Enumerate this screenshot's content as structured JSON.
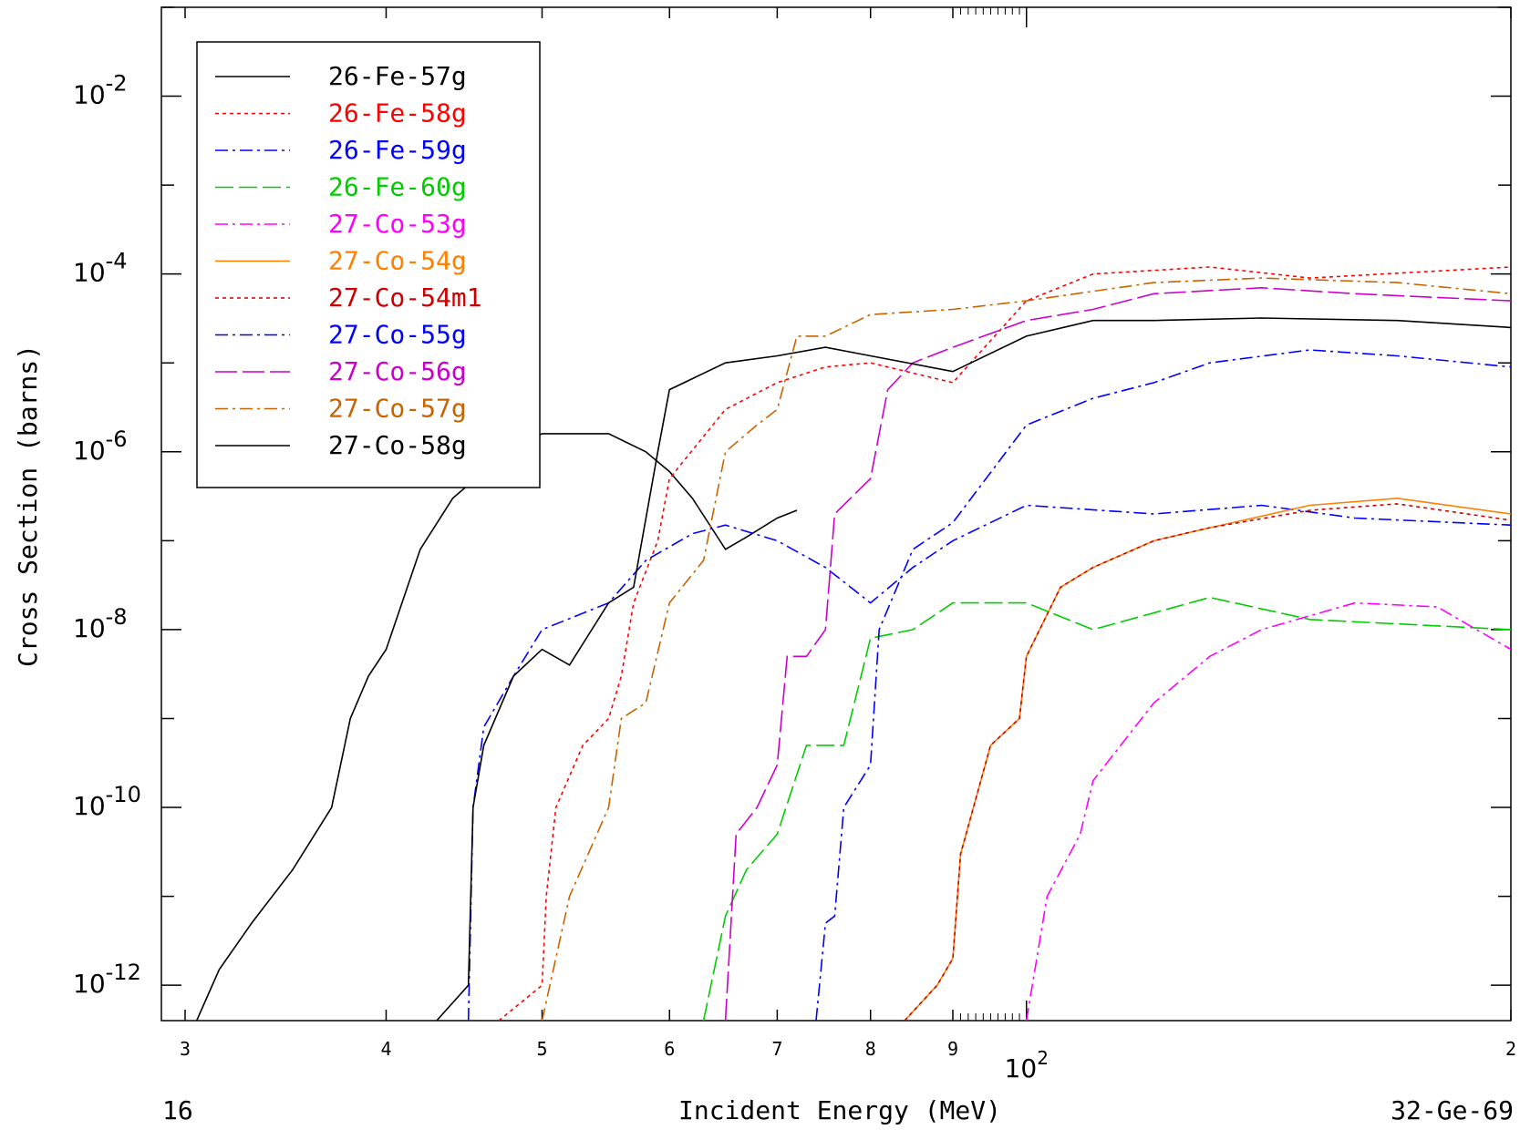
{
  "chart_data": {
    "type": "line",
    "xlabel": "Incident Energy (MeV)",
    "ylabel": "Cross Section (barns)",
    "x_scale": "log",
    "y_scale": "log",
    "xlim": [
      29,
      200
    ],
    "ylim": [
      4e-13,
      0.1
    ],
    "x_ticks": [
      {
        "value": 30,
        "label": "3"
      },
      {
        "value": 40,
        "label": "4"
      },
      {
        "value": 50,
        "label": "5"
      },
      {
        "value": 60,
        "label": "6"
      },
      {
        "value": 70,
        "label": "7"
      },
      {
        "value": 80,
        "label": "8"
      },
      {
        "value": 90,
        "label": "9"
      },
      {
        "value": 200,
        "label": "2"
      }
    ],
    "x_decade_label": {
      "base": "10",
      "exp": "2"
    },
    "y_tick_labels": [
      {
        "value": 0.01,
        "base": "10",
        "exp": "-2"
      },
      {
        "value": 0.0001,
        "base": "10",
        "exp": "-4"
      },
      {
        "value": 1e-06,
        "base": "10",
        "exp": "-6"
      },
      {
        "value": 1e-08,
        "base": "10",
        "exp": "-8"
      },
      {
        "value": 1e-10,
        "base": "10",
        "exp": "-10"
      },
      {
        "value": 1e-12,
        "base": "10",
        "exp": "-12"
      }
    ],
    "legend_position": "top-left",
    "footer_left": "16",
    "footer_right": "32-Ge-69",
    "series": [
      {
        "name": "26-Fe-57g",
        "color": "#000000",
        "dash": "solid",
        "points": [
          [
            30.5,
            4e-13
          ],
          [
            31.5,
            1.5e-12
          ],
          [
            33,
            5e-12
          ],
          [
            35,
            2e-11
          ],
          [
            37,
            1e-10
          ],
          [
            38,
            1e-09
          ],
          [
            39,
            3e-09
          ],
          [
            40,
            6e-09
          ],
          [
            42,
            8e-08
          ],
          [
            44,
            3e-07
          ],
          [
            46,
            6e-07
          ],
          [
            48,
            1.1e-06
          ],
          [
            50,
            1.6e-06
          ],
          [
            55,
            1.6e-06
          ],
          [
            58,
            1e-06
          ],
          [
            60,
            6e-07
          ],
          [
            62,
            3e-07
          ],
          [
            65,
            8e-08
          ],
          [
            67,
            1.1e-07
          ],
          [
            70,
            1.8e-07
          ],
          [
            72,
            2.2e-07
          ]
        ]
      },
      {
        "name": "26-Fe-58g",
        "color": "#ff0000",
        "dash": "4,4",
        "points": [
          [
            47,
            4e-13
          ],
          [
            50,
            1e-12
          ],
          [
            50.3,
            1e-11
          ],
          [
            51,
            1e-10
          ],
          [
            53,
            5e-10
          ],
          [
            55,
            1e-09
          ],
          [
            56,
            3e-09
          ],
          [
            57,
            2e-08
          ],
          [
            59,
            1e-07
          ],
          [
            60,
            5e-07
          ],
          [
            65,
            3e-06
          ],
          [
            70,
            6e-06
          ],
          [
            75,
            9e-06
          ],
          [
            80,
            1e-05
          ],
          [
            90,
            6e-06
          ],
          [
            100,
            5e-05
          ],
          [
            110,
            0.0001
          ],
          [
            130,
            0.00012
          ],
          [
            150,
            9e-05
          ],
          [
            200,
            0.00012
          ]
        ]
      },
      {
        "name": "26-Fe-59g",
        "color": "#0000ff",
        "dash": "14,5,3,5",
        "points": [
          [
            45,
            4e-13
          ],
          [
            45.3,
            1e-10
          ],
          [
            46,
            8e-10
          ],
          [
            48,
            3e-09
          ],
          [
            50,
            1e-08
          ],
          [
            55,
            2e-08
          ],
          [
            58,
            6e-08
          ],
          [
            62,
            1.2e-07
          ],
          [
            65,
            1.5e-07
          ],
          [
            70,
            1e-07
          ],
          [
            75,
            5e-08
          ],
          [
            80,
            2e-08
          ],
          [
            85,
            5e-08
          ],
          [
            90,
            1e-07
          ],
          [
            100,
            2.5e-07
          ],
          [
            120,
            2e-07
          ],
          [
            140,
            2.5e-07
          ],
          [
            160,
            1.8e-07
          ],
          [
            200,
            1.5e-07
          ]
        ]
      },
      {
        "name": "26-Fe-60g",
        "color": "#00cc00",
        "dash": "20,6",
        "points": [
          [
            63,
            4e-13
          ],
          [
            65,
            6e-12
          ],
          [
            67,
            2e-11
          ],
          [
            70,
            5e-11
          ],
          [
            73,
            5e-10
          ],
          [
            77,
            5e-10
          ],
          [
            80,
            8e-09
          ],
          [
            85,
            1e-08
          ],
          [
            90,
            2e-08
          ],
          [
            100,
            2e-08
          ],
          [
            110,
            1e-08
          ],
          [
            130,
            2.3e-08
          ],
          [
            150,
            1.3e-08
          ],
          [
            200,
            1e-08
          ]
        ]
      },
      {
        "name": "27-Co-53g",
        "color": "#ff00ff",
        "dash": "14,5,3,5",
        "points": [
          [
            100,
            4e-13
          ],
          [
            103,
            1e-11
          ],
          [
            108,
            5e-11
          ],
          [
            110,
            2e-10
          ],
          [
            120,
            1.5e-09
          ],
          [
            130,
            5e-09
          ],
          [
            140,
            1e-08
          ],
          [
            160,
            2e-08
          ],
          [
            180,
            1.8e-08
          ],
          [
            200,
            6e-09
          ]
        ]
      },
      {
        "name": "27-Co-54g",
        "color": "#ff8000",
        "dash": "solid",
        "points": [
          [
            84,
            4e-13
          ],
          [
            88,
            1e-12
          ],
          [
            90,
            2e-12
          ],
          [
            91,
            3e-11
          ],
          [
            95,
            5e-10
          ],
          [
            99,
            1e-09
          ],
          [
            100,
            5e-09
          ],
          [
            105,
            3e-08
          ],
          [
            110,
            5e-08
          ],
          [
            120,
            1e-07
          ],
          [
            130,
            1.4e-07
          ],
          [
            150,
            2.5e-07
          ],
          [
            170,
            3e-07
          ],
          [
            200,
            2e-07
          ]
        ]
      },
      {
        "name": "27-Co-54m1",
        "color": "#cc0000",
        "dash": "4,4",
        "points": [
          [
            84,
            4e-13
          ],
          [
            88,
            1e-12
          ],
          [
            90,
            2e-12
          ],
          [
            91,
            3e-11
          ],
          [
            95,
            5e-10
          ],
          [
            99,
            1e-09
          ],
          [
            100,
            5e-09
          ],
          [
            105,
            3e-08
          ],
          [
            110,
            5e-08
          ],
          [
            120,
            1e-07
          ],
          [
            130,
            1.4e-07
          ],
          [
            150,
            2.2e-07
          ],
          [
            170,
            2.6e-07
          ],
          [
            200,
            1.7e-07
          ]
        ]
      },
      {
        "name": "27-Co-55g",
        "color": "#0000ff",
        "dash": "14,5,3,5",
        "points": [
          [
            74,
            4e-13
          ],
          [
            75,
            5e-12
          ],
          [
            76,
            6e-12
          ],
          [
            77,
            1e-10
          ],
          [
            80,
            3e-10
          ],
          [
            81,
            1e-08
          ],
          [
            85,
            8e-08
          ],
          [
            90,
            1.6e-07
          ],
          [
            100,
            2e-06
          ],
          [
            110,
            4e-06
          ],
          [
            120,
            6e-06
          ],
          [
            130,
            1e-05
          ],
          [
            150,
            1.4e-05
          ],
          [
            170,
            1.2e-05
          ],
          [
            200,
            9e-06
          ]
        ]
      },
      {
        "name": "27-Co-56g",
        "color": "#cc00cc",
        "dash": "24,6",
        "points": [
          [
            65,
            4e-13
          ],
          [
            66,
            5e-11
          ],
          [
            68,
            1e-10
          ],
          [
            70,
            3e-10
          ],
          [
            71,
            5e-09
          ],
          [
            73,
            5e-09
          ],
          [
            75,
            1e-08
          ],
          [
            76,
            2e-07
          ],
          [
            80,
            5e-07
          ],
          [
            82,
            5e-06
          ],
          [
            85,
            1e-05
          ],
          [
            90,
            1.5e-05
          ],
          [
            100,
            3e-05
          ],
          [
            110,
            4e-05
          ],
          [
            120,
            6e-05
          ],
          [
            140,
            7e-05
          ],
          [
            160,
            6e-05
          ],
          [
            200,
            5e-05
          ]
        ]
      },
      {
        "name": "27-Co-57g",
        "color": "#c86400",
        "dash": "14,5,3,5",
        "points": [
          [
            50,
            4e-13
          ],
          [
            52,
            1e-11
          ],
          [
            55,
            1e-10
          ],
          [
            56,
            1e-09
          ],
          [
            58,
            1.5e-09
          ],
          [
            60,
            2e-08
          ],
          [
            63,
            6e-08
          ],
          [
            65,
            1e-06
          ],
          [
            68,
            2e-06
          ],
          [
            70,
            3e-06
          ],
          [
            72,
            2e-05
          ],
          [
            75,
            2e-05
          ],
          [
            80,
            3.5e-05
          ],
          [
            90,
            4e-05
          ],
          [
            100,
            5e-05
          ],
          [
            120,
            8e-05
          ],
          [
            140,
            9e-05
          ],
          [
            170,
            8e-05
          ],
          [
            200,
            6e-05
          ]
        ]
      },
      {
        "name": "27-Co-58g",
        "color": "#000000",
        "dash": "solid",
        "points": [
          [
            43,
            4e-13
          ],
          [
            45,
            1e-12
          ],
          [
            45.3,
            1e-10
          ],
          [
            46,
            5e-10
          ],
          [
            48,
            3e-09
          ],
          [
            50,
            6e-09
          ],
          [
            52,
            4e-09
          ],
          [
            55,
            2e-08
          ],
          [
            57,
            3e-08
          ],
          [
            59,
            1e-06
          ],
          [
            60,
            5e-06
          ],
          [
            65,
            1e-05
          ],
          [
            70,
            1.2e-05
          ],
          [
            75,
            1.5e-05
          ],
          [
            80,
            1.2e-05
          ],
          [
            90,
            8e-06
          ],
          [
            100,
            2e-05
          ],
          [
            110,
            3e-05
          ],
          [
            120,
            3e-05
          ],
          [
            140,
            3.2e-05
          ],
          [
            170,
            3e-05
          ],
          [
            200,
            2.5e-05
          ]
        ]
      }
    ]
  }
}
